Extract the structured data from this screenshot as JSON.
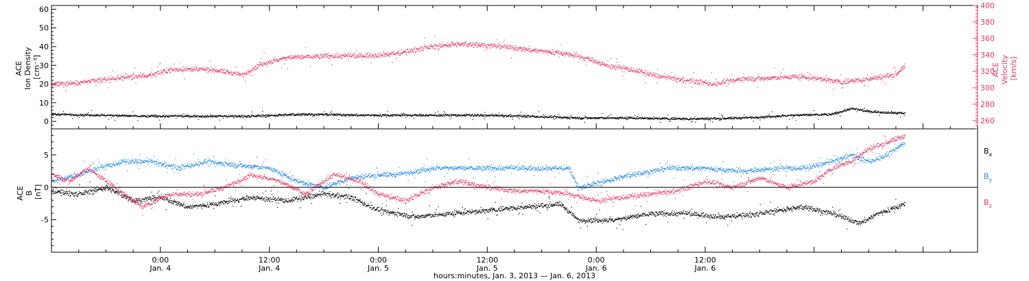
{
  "chart_data": [
    {
      "type": "scatter",
      "panel": "top",
      "ylabel_left": [
        "ACE",
        "Ion Density",
        "[cm⁻³]"
      ],
      "ylabel_right": [
        "ACE",
        "Velocity",
        "[km/s]"
      ],
      "ylim_left": [
        -4,
        62
      ],
      "ylim_right": [
        250,
        400
      ],
      "yticks_left": [
        0,
        10,
        20,
        30,
        40,
        50,
        60
      ],
      "yticks_right": [
        260,
        280,
        300,
        320,
        340,
        360,
        380,
        400
      ],
      "series": [
        {
          "axis": "right",
          "color": "#e8365d",
          "anchors": [
            [
              0,
              304
            ],
            [
              4,
              308
            ],
            [
              8,
              313
            ],
            [
              11,
              316
            ],
            [
              13,
              322
            ],
            [
              15,
              323
            ],
            [
              18,
              322
            ],
            [
              21,
              316
            ],
            [
              23,
              329
            ],
            [
              26,
              337
            ],
            [
              30,
              339
            ],
            [
              34,
              339
            ],
            [
              38,
              342
            ],
            [
              41,
              349
            ],
            [
              44,
              353
            ],
            [
              47,
              353
            ],
            [
              50,
              350
            ],
            [
              53,
              346
            ],
            [
              56,
              343
            ],
            [
              59,
              336
            ],
            [
              61,
              328
            ],
            [
              64,
              322
            ],
            [
              67,
              314
            ],
            [
              70,
              309
            ],
            [
              73,
              305
            ],
            [
              76,
              311
            ],
            [
              79,
              312
            ],
            [
              82,
              314
            ],
            [
              85,
              311
            ],
            [
              87,
              307
            ],
            [
              90,
              311
            ],
            [
              93,
              317
            ],
            [
              94,
              327
            ]
          ]
        },
        {
          "axis": "left",
          "color": "#000000",
          "anchors": [
            [
              0,
              4
            ],
            [
              5,
              3.5
            ],
            [
              10,
              3
            ],
            [
              16,
              3
            ],
            [
              22,
              3
            ],
            [
              28,
              4
            ],
            [
              34,
              3.5
            ],
            [
              40,
              3.5
            ],
            [
              46,
              3.5
            ],
            [
              52,
              3
            ],
            [
              58,
              2
            ],
            [
              64,
              2
            ],
            [
              70,
              1.5
            ],
            [
              76,
              2
            ],
            [
              82,
              3.5
            ],
            [
              86,
              4
            ],
            [
              88,
              7
            ],
            [
              90,
              5.5
            ],
            [
              94,
              4.5
            ]
          ]
        }
      ]
    },
    {
      "type": "scatter",
      "panel": "bottom",
      "ylabel": [
        "ACE",
        "B",
        "[nT]"
      ],
      "ylim": [
        -10,
        9
      ],
      "yticks": [
        -5,
        0,
        5
      ],
      "legend": [
        {
          "label": "B",
          "sub": "x",
          "color": "#000000"
        },
        {
          "label": "B",
          "sub": "y",
          "color": "#1e88e5"
        },
        {
          "label": "B",
          "sub": "z",
          "color": "#e8365d"
        }
      ],
      "series": [
        {
          "name": "Bx",
          "color": "#000000",
          "anchors": [
            [
              0,
              -0.5
            ],
            [
              3,
              -1
            ],
            [
              6,
              0
            ],
            [
              9,
              -2
            ],
            [
              12,
              -1.5
            ],
            [
              15,
              -3
            ],
            [
              18,
              -2.5
            ],
            [
              22,
              -1.5
            ],
            [
              26,
              -2
            ],
            [
              30,
              -1
            ],
            [
              33,
              -1.5
            ],
            [
              36,
              -3.5
            ],
            [
              40,
              -4.5
            ],
            [
              44,
              -4
            ],
            [
              48,
              -3.5
            ],
            [
              52,
              -3
            ],
            [
              56,
              -2.5
            ],
            [
              58,
              -5
            ],
            [
              62,
              -5
            ],
            [
              66,
              -4
            ],
            [
              70,
              -4
            ],
            [
              74,
              -4.5
            ],
            [
              78,
              -4
            ],
            [
              80,
              -3.5
            ],
            [
              83,
              -3
            ],
            [
              86,
              -4
            ],
            [
              89,
              -5.5
            ],
            [
              91,
              -4
            ],
            [
              93,
              -3
            ],
            [
              94,
              -2.5
            ]
          ]
        },
        {
          "name": "By",
          "color": "#1e88e5",
          "anchors": [
            [
              0,
              1
            ],
            [
              3,
              2
            ],
            [
              5,
              3
            ],
            [
              8,
              4
            ],
            [
              11,
              4
            ],
            [
              14,
              3
            ],
            [
              17,
              4
            ],
            [
              20,
              3.5
            ],
            [
              24,
              3
            ],
            [
              27,
              1
            ],
            [
              30,
              0
            ],
            [
              33,
              1.5
            ],
            [
              36,
              2
            ],
            [
              38,
              2
            ],
            [
              42,
              3
            ],
            [
              46,
              3
            ],
            [
              50,
              3
            ],
            [
              54,
              3
            ],
            [
              57,
              3
            ],
            [
              58,
              0
            ],
            [
              61,
              1
            ],
            [
              64,
              2
            ],
            [
              68,
              3
            ],
            [
              72,
              3
            ],
            [
              76,
              2.5
            ],
            [
              80,
              3
            ],
            [
              83,
              3
            ],
            [
              86,
              4
            ],
            [
              88,
              5
            ],
            [
              90,
              4
            ],
            [
              92,
              5
            ],
            [
              94,
              7
            ]
          ]
        },
        {
          "name": "Bz",
          "color": "#e8365d",
          "anchors": [
            [
              0,
              2
            ],
            [
              2,
              1
            ],
            [
              4,
              3
            ],
            [
              6,
              1
            ],
            [
              8,
              -1
            ],
            [
              10,
              -3
            ],
            [
              13,
              -1
            ],
            [
              16,
              -1
            ],
            [
              19,
              0
            ],
            [
              22,
              2
            ],
            [
              25,
              1
            ],
            [
              28,
              -1
            ],
            [
              31,
              2
            ],
            [
              34,
              1
            ],
            [
              36,
              -1
            ],
            [
              39,
              -2
            ],
            [
              42,
              0
            ],
            [
              45,
              1
            ],
            [
              48,
              0
            ],
            [
              51,
              -0.5
            ],
            [
              54,
              -0.5
            ],
            [
              57,
              -1
            ],
            [
              60,
              -2
            ],
            [
              63,
              -1.5
            ],
            [
              66,
              -1
            ],
            [
              69,
              -0.5
            ],
            [
              72,
              1
            ],
            [
              75,
              0
            ],
            [
              78,
              1.5
            ],
            [
              81,
              0
            ],
            [
              84,
              1
            ],
            [
              86,
              3
            ],
            [
              88,
              4
            ],
            [
              90,
              6
            ],
            [
              92,
              7
            ],
            [
              94,
              8
            ]
          ]
        }
      ]
    },
    {
      "type": "axis",
      "role": "time-axis",
      "xlim": [
        0,
        102
      ],
      "ticks": [
        {
          "x": 12,
          "time": "0:00",
          "date": "Jan. 4"
        },
        {
          "x": 24,
          "time": "12:00",
          "date": "Jan. 4"
        },
        {
          "x": 36,
          "time": "0:00",
          "date": "Jan. 5"
        },
        {
          "x": 48,
          "time": "12:00",
          "date": "Jan. 5"
        },
        {
          "x": 60,
          "time": "0:00",
          "date": "Jan. 6"
        },
        {
          "x": 72,
          "time": "12:00",
          "date": "Jan. 6"
        }
      ],
      "xlabel": "hours:minutes, Jan.  3, 2013 — Jan.  6, 2013"
    }
  ]
}
